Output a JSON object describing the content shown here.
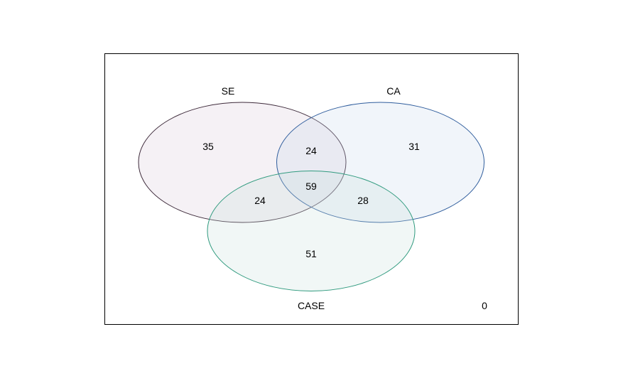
{
  "sets": [
    {
      "name": "SE",
      "stroke": "#3d2a3a",
      "fill": "#d7c8d7"
    },
    {
      "name": "CA",
      "stroke": "#2e5c9c",
      "fill": "#c9d6ea"
    },
    {
      "name": "CASE",
      "stroke": "#2f9a7e",
      "fill": "#c8e1dd"
    }
  ],
  "regions": {
    "se_only": "35",
    "se_ca": "24",
    "ca_only": "31",
    "se_ca_case": "59",
    "se_case": "24",
    "ca_case": "28",
    "case_only": "51",
    "none": "0"
  }
}
